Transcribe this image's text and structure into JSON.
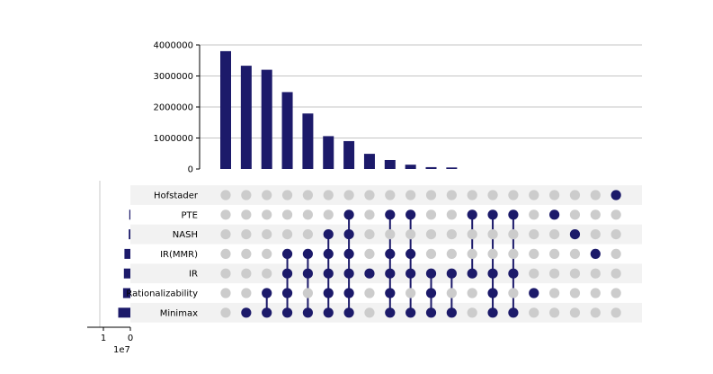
{
  "chart_data": {
    "type": "upset",
    "sets": [
      "Hofstader",
      "PTE",
      "NASH",
      "IR(MMR)",
      "IR",
      "Rationalizability",
      "Minimax"
    ],
    "set_sizes": [
      0,
      400000,
      600000,
      2200000,
      2400000,
      2700000,
      4500000
    ],
    "set_size_xlim": [
      16000000,
      0
    ],
    "set_size_ticks": [
      {
        "value": 10000000,
        "label": "1"
      },
      {
        "value": 0,
        "label": "0"
      }
    ],
    "set_size_offset_label": "1e7",
    "intersection_ylim": [
      0,
      4000000
    ],
    "intersection_ticks": [
      {
        "value": 0,
        "label": "0"
      },
      {
        "value": 1000000,
        "label": "1000000"
      },
      {
        "value": 2000000,
        "label": "2000000"
      },
      {
        "value": 3000000,
        "label": "3000000"
      },
      {
        "value": 4000000,
        "label": "4000000"
      }
    ],
    "intersection_sizes": [
      3800000,
      3330000,
      3200000,
      2480000,
      1790000,
      1060000,
      900000,
      490000,
      290000,
      140000,
      60000,
      50000,
      0,
      0,
      0,
      0,
      0,
      0,
      0,
      0
    ],
    "membership": [
      [],
      [
        "Minimax"
      ],
      [
        "Rationalizability",
        "Minimax"
      ],
      [
        "IR(MMR)",
        "IR",
        "Rationalizability",
        "Minimax"
      ],
      [
        "IR(MMR)",
        "IR",
        "Minimax"
      ],
      [
        "NASH",
        "IR(MMR)",
        "IR",
        "Rationalizability",
        "Minimax"
      ],
      [
        "PTE",
        "NASH",
        "IR(MMR)",
        "IR",
        "Rationalizability",
        "Minimax"
      ],
      [
        "IR"
      ],
      [
        "PTE",
        "IR(MMR)",
        "IR",
        "Rationalizability",
        "Minimax"
      ],
      [
        "PTE",
        "IR(MMR)",
        "IR",
        "Minimax"
      ],
      [
        "IR",
        "Rationalizability",
        "Minimax"
      ],
      [
        "IR",
        "Minimax"
      ],
      [
        "PTE",
        "IR"
      ],
      [
        "PTE",
        "IR",
        "Rationalizability",
        "Minimax"
      ],
      [
        "PTE",
        "IR",
        "Minimax"
      ],
      [
        "Rationalizability"
      ],
      [
        "PTE"
      ],
      [
        "NASH"
      ],
      [
        "IR(MMR)"
      ],
      [
        "Hofstader"
      ]
    ],
    "colors": {
      "active": "#1c1a6a",
      "inactive": "#cccccc",
      "bar": "#1c1a6a",
      "stripe": "#f2f2f2",
      "grid": "#b0b0b0"
    }
  }
}
